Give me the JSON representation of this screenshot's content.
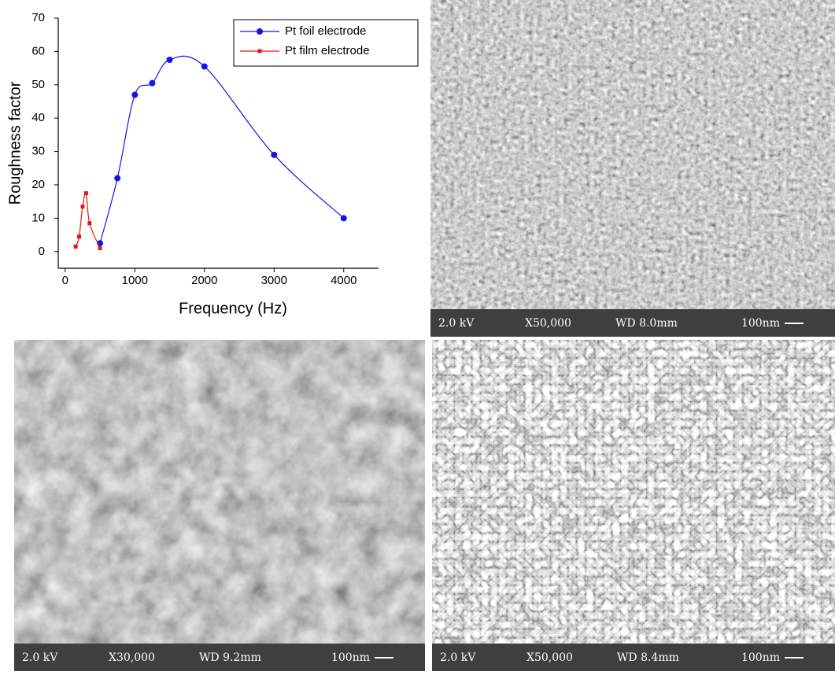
{
  "chart_data": {
    "type": "line",
    "x_label": "Frequency (Hz)",
    "y_label": "Roughness factor",
    "series": [
      {
        "name": "Pt foil electrode",
        "color": "#1414e6",
        "marker": "circle",
        "x": [
          500,
          750,
          1000,
          1250,
          1500,
          2000,
          3000,
          4000
        ],
        "values": [
          2.5,
          22,
          47,
          50.5,
          57.5,
          55.5,
          29,
          10
        ]
      },
      {
        "name": "Pt film electrode",
        "color": "#e61414",
        "marker": "square",
        "x": [
          150,
          200,
          250,
          300,
          350,
          500
        ],
        "values": [
          1.5,
          4.5,
          13.5,
          17.5,
          8.5,
          1
        ]
      }
    ],
    "xlim": [
      -100,
      4500
    ],
    "xticks": [
      0,
      1000,
      2000,
      3000,
      4000
    ],
    "ylim": [
      -5,
      70
    ],
    "yticks": [
      0,
      10,
      20,
      30,
      40,
      50,
      60,
      70
    ],
    "grid": false,
    "legend": "upper right"
  },
  "sem_images": [
    {
      "voltage": "2.0 kV",
      "magnification": "X50,000",
      "working_distance": "WD 8.0mm",
      "scale": "100nm"
    },
    {
      "voltage": "2.0 kV",
      "magnification": "X30,000",
      "working_distance": "WD 9.2mm",
      "scale": "100nm"
    },
    {
      "voltage": "2.0 kV",
      "magnification": "X50,000",
      "working_distance": "WD 8.4mm",
      "scale": "100nm"
    }
  ]
}
